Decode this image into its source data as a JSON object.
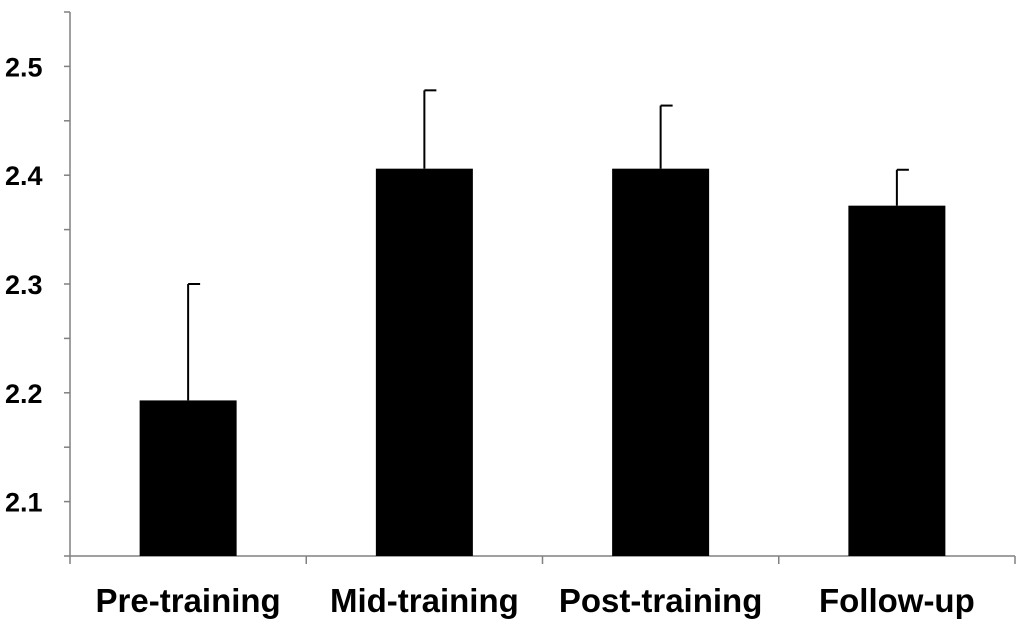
{
  "chart_data": {
    "type": "bar",
    "categories": [
      "Pre-training",
      "Mid-training",
      "Post-training",
      "Follow-up"
    ],
    "values": [
      2.193,
      2.406,
      2.406,
      2.372
    ],
    "error_upper": [
      0.107,
      0.072,
      0.058,
      0.033
    ],
    "title": "",
    "xlabel": "",
    "ylabel": "",
    "ylim": [
      2.05,
      2.55
    ],
    "y_ticks": [
      "2.1",
      "2.2",
      "2.3",
      "2.4",
      "2.5"
    ],
    "grid": false,
    "legend": "none",
    "bar_color": "#000000"
  }
}
